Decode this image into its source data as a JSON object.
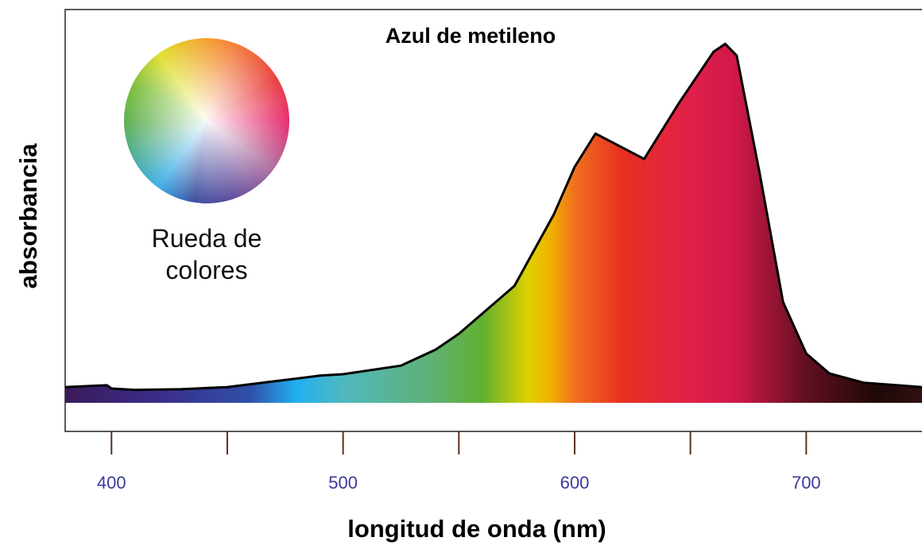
{
  "chart_data": {
    "type": "area",
    "title": "Azul de metileno",
    "x_label": "longitud de onda (nm)",
    "y_label": "absorbancia",
    "annotation": "Rueda de colores",
    "x": [
      380,
      398,
      400,
      410,
      430,
      450,
      470,
      490,
      500,
      525,
      540,
      550,
      574,
      591,
      600,
      609,
      620,
      630,
      645,
      660,
      665,
      670,
      680,
      690,
      700,
      710,
      725,
      750
    ],
    "values": [
      0.044,
      0.049,
      0.04,
      0.036,
      0.038,
      0.044,
      0.06,
      0.076,
      0.08,
      0.104,
      0.149,
      0.193,
      0.327,
      0.527,
      0.66,
      0.753,
      0.716,
      0.682,
      0.838,
      0.982,
      1.004,
      0.971,
      0.638,
      0.282,
      0.138,
      0.082,
      0.056,
      0.044
    ],
    "xlim": [
      380,
      750
    ],
    "ylim": [
      -0.08,
      1.1
    ],
    "xticks": [
      400,
      500,
      600,
      700
    ],
    "xminorticks": [
      450,
      550,
      650
    ],
    "color": "#000000"
  }
}
